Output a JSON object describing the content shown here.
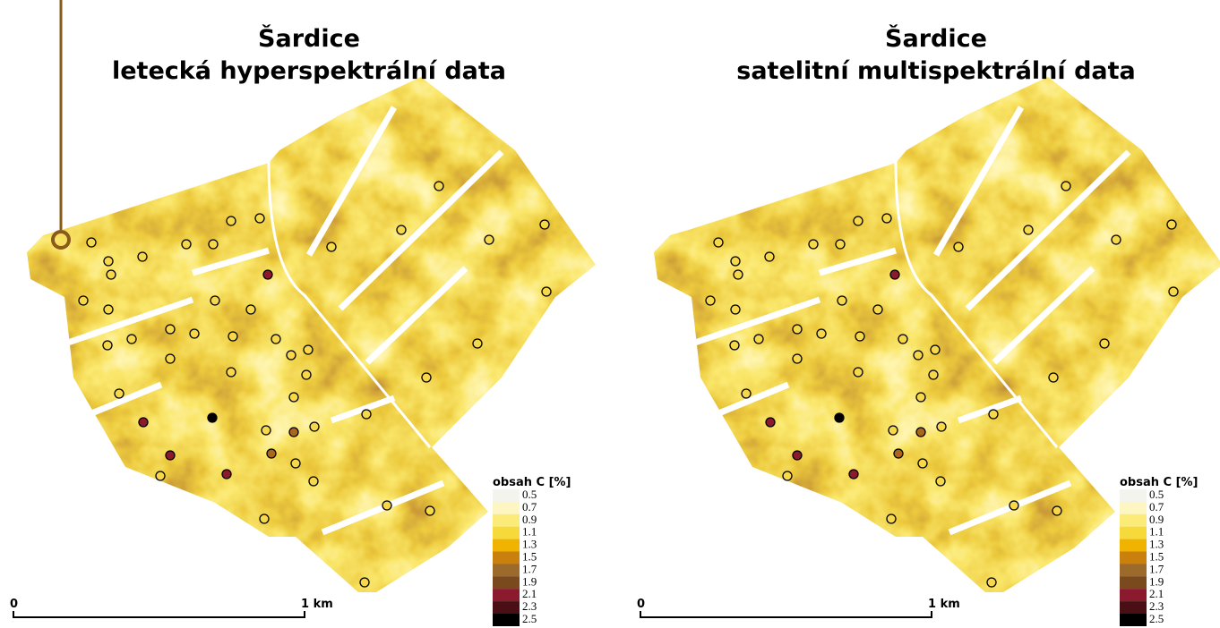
{
  "panels": [
    {
      "title_line1": "Šardice",
      "title_line2": "letecká hyperspektrální data",
      "legend": {
        "title": "obsah C [%]",
        "items": [
          {
            "label": "0.5",
            "color": "#f4f4ee"
          },
          {
            "label": "0.7",
            "color": "#fdf6c2"
          },
          {
            "label": "0.9",
            "color": "#fbeb78"
          },
          {
            "label": "1.1",
            "color": "#f6da3c"
          },
          {
            "label": "1.3",
            "color": "#efb300"
          },
          {
            "label": "1.5",
            "color": "#c9800c"
          },
          {
            "label": "1.7",
            "color": "#9c6a2a"
          },
          {
            "label": "1.9",
            "color": "#7a4a1e"
          },
          {
            "label": "2.1",
            "color": "#8c1a2e"
          },
          {
            "label": "2.3",
            "color": "#4a0f14"
          },
          {
            "label": "2.5",
            "color": "#000000"
          }
        ]
      },
      "scale_bar": {
        "start": "0",
        "end": "1 km"
      }
    },
    {
      "title_line1": "Šardice",
      "title_line2": "satelitní multispektrální data",
      "legend": {
        "title": "obsah C [%]",
        "items": [
          {
            "label": "0.5",
            "color": "#f4f4ee"
          },
          {
            "label": "0.7",
            "color": "#fdf6c2"
          },
          {
            "label": "0.9",
            "color": "#fbeb78"
          },
          {
            "label": "1.1",
            "color": "#f6da3c"
          },
          {
            "label": "1.3",
            "color": "#efb300"
          },
          {
            "label": "1.5",
            "color": "#c9800c"
          },
          {
            "label": "1.7",
            "color": "#9c6a2a"
          },
          {
            "label": "1.9",
            "color": "#7a4a1e"
          },
          {
            "label": "2.1",
            "color": "#8c1a2e"
          },
          {
            "label": "2.3",
            "color": "#4a0f14"
          },
          {
            "label": "2.5",
            "color": "#000000"
          }
        ]
      },
      "scale_bar": {
        "start": "0",
        "end": "1 km"
      }
    }
  ]
}
